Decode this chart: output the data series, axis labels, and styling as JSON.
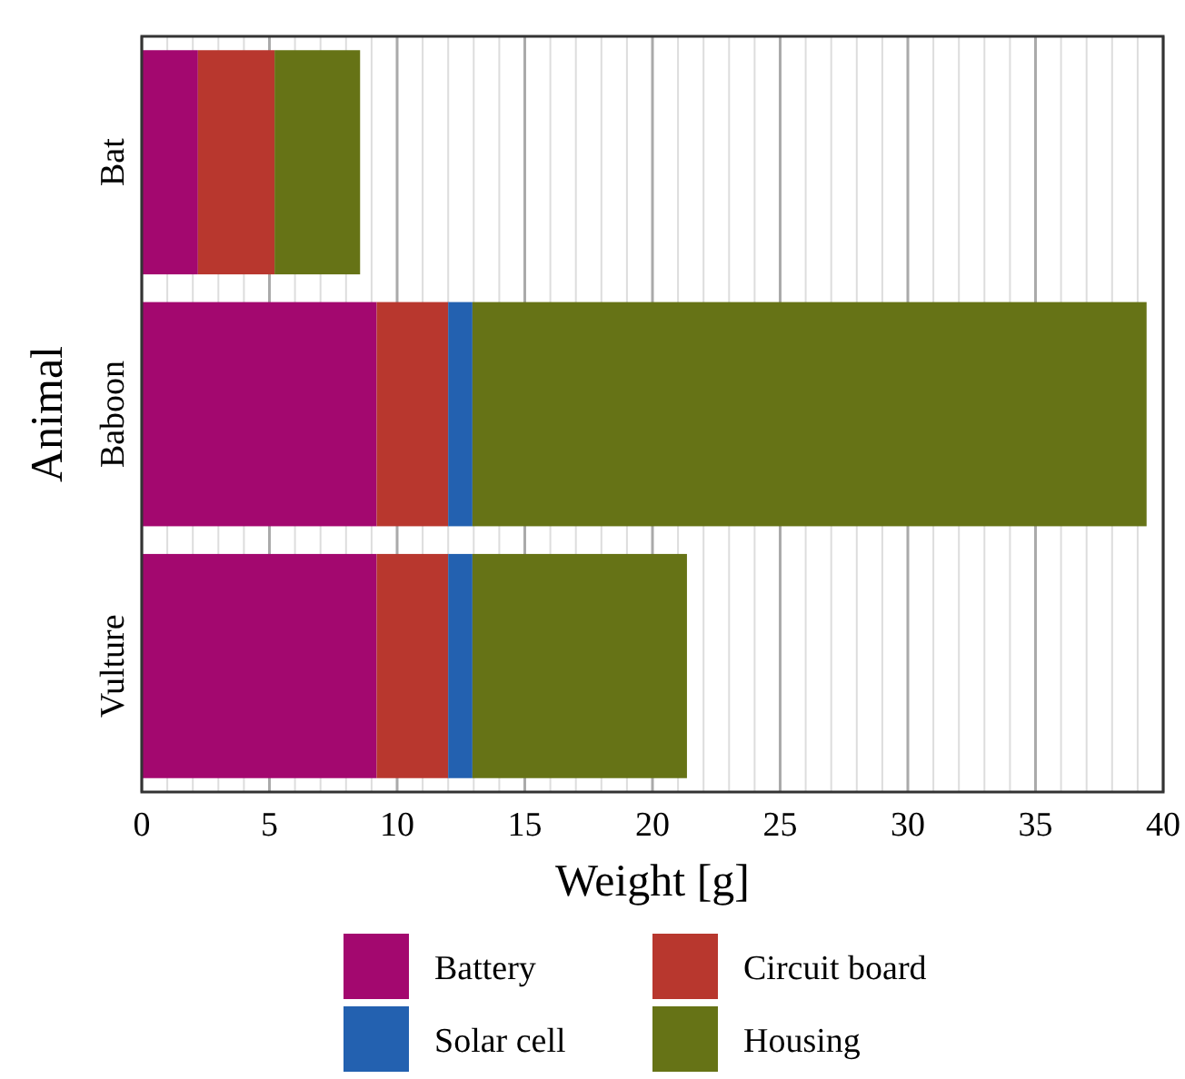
{
  "chart_data": {
    "type": "bar",
    "orientation": "horizontal",
    "stacked": true,
    "xlabel": "Weight [g]",
    "ylabel": "Animal",
    "categories": [
      "Bat",
      "Baboon",
      "Vulture"
    ],
    "series": [
      {
        "name": "Battery",
        "color": "#a3086f",
        "values": [
          2.2,
          9.2,
          9.2
        ]
      },
      {
        "name": "Circuit board",
        "color": "#b8372e",
        "values": [
          3.0,
          2.8,
          2.8
        ]
      },
      {
        "name": "Solar cell",
        "color": "#2361b0",
        "values": [
          null,
          0.95,
          0.95
        ]
      },
      {
        "name": "Housing",
        "color": "#667316",
        "values": [
          3.35,
          26.4,
          8.4
        ]
      }
    ],
    "xlim": [
      0,
      40
    ],
    "xticks": [
      0,
      {
        "value": 1,
        "label": null
      },
      {
        "value": 2,
        "label": null
      },
      {
        "value": 3,
        "label": null
      },
      {
        "value": 4,
        "label": null
      },
      5,
      {
        "value": 6,
        "label": null
      },
      {
        "value": 7,
        "label": null
      },
      {
        "value": 8,
        "label": null
      },
      {
        "value": 9,
        "label": null
      },
      10,
      {
        "value": 11,
        "label": null
      },
      {
        "value": 12,
        "label": null
      },
      {
        "value": 13,
        "label": null
      },
      {
        "value": 14,
        "label": null
      },
      15,
      {
        "value": 16,
        "label": null
      },
      {
        "value": 17,
        "label": null
      },
      {
        "value": 18,
        "label": null
      },
      {
        "value": 19,
        "label": null
      },
      20,
      {
        "value": 21,
        "label": null
      },
      {
        "value": 22,
        "label": null
      },
      {
        "value": 23,
        "label": null
      },
      {
        "value": 24,
        "label": null
      },
      25,
      {
        "value": 26,
        "label": null
      },
      {
        "value": 27,
        "label": null
      },
      {
        "value": 28,
        "label": null
      },
      {
        "value": 29,
        "label": null
      },
      30,
      {
        "value": 31,
        "label": null
      },
      {
        "value": 32,
        "label": null
      },
      {
        "value": 33,
        "label": null
      },
      {
        "value": 34,
        "label": null
      },
      35,
      {
        "value": 36,
        "label": null
      },
      {
        "value": 37,
        "label": null
      },
      {
        "value": 38,
        "label": null
      },
      {
        "value": 39,
        "label": null
      },
      40
    ],
    "grid": "x",
    "legend": "bottom"
  }
}
